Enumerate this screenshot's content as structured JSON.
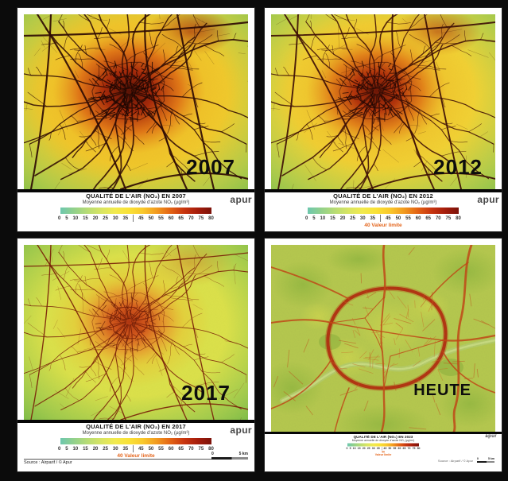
{
  "figure": {
    "background": "#0b0b0b",
    "description": "Vergleich der Luftqualität (NO₂) in Paris: 2007, 2012, 2017 und heute"
  },
  "panels": [
    {
      "year_label": "2007",
      "legend": {
        "title": "QUALITÉ DE L'AIR (NO₂) EN 2007",
        "subtitle": "Moyenne annuelle de dioxyde d'azote NO₂ (µg/m³)",
        "logo_text": "apur"
      },
      "map_colors": {
        "base": "#f1cd2e",
        "mid": "#f0b824",
        "mid2": "#dd6612",
        "core2": "#a32108",
        "core": "#581004",
        "edge": "#9ccb53",
        "edge_dark": "#7fbf4a",
        "blob": "#9c1d07",
        "blob_opacity": 0.8,
        "road": "#2d0903",
        "road_dark": "#170401",
        "road_width": 1.35,
        "mesh_count": 135,
        "core_radius": 0.5
      }
    },
    {
      "year_label": "2012",
      "legend": {
        "title": "QUALITÉ DE L'AIR (NO₂) EN 2012",
        "subtitle": "Moyenne annuelle de dioxyde d'azote NO₂ (µg/m³)",
        "logo_text": "apur",
        "limit_label": "40 Valeur limite"
      },
      "map_colors": {
        "base": "#f2d335",
        "mid": "#efbc28",
        "mid2": "#e07414",
        "core2": "#b02c09",
        "core": "#6b1405",
        "edge": "#9ccb53",
        "edge_dark": "#82c14c",
        "blob": "#a82508",
        "blob_opacity": 0.6,
        "road": "#3c0d05",
        "road_dark": "#1e0502",
        "road_width": 1.2,
        "mesh_count": 110,
        "core_radius": 0.46
      }
    },
    {
      "year_label": "2017",
      "legend": {
        "title": "QUALITÉ DE L'AIR (NO₂) EN 2017",
        "subtitle": "Moyenne annuelle de dioxyde d'azote NO₂ (µg/m³)",
        "logo_text": "apur",
        "limit_label": "40 Valeur limite"
      },
      "source_text": "Source : Airparif / © Apur",
      "scalebar": {
        "zero_label": "0",
        "max_label": "5 km"
      },
      "map_colors": {
        "base": "#dbe14a",
        "mid": "#ecc12f",
        "mid2": "#e8922a",
        "core2": "#d4531a",
        "core": "#b03410",
        "edge": "#8ac24e",
        "edge_dark": "#6fb646",
        "blob": "#c8651c",
        "blob_opacity": 0.4,
        "road": "#7a2008",
        "road_dark": "#5e1806",
        "road_width": 0.85,
        "mesh_count": 70,
        "core_radius": 0.36
      }
    },
    {
      "year_label": "HEUTE",
      "legend": {
        "title": "QUALITÉ DE L'AIR (NO₂) EN 2023",
        "subtitle": "Moyenne annuelle de dioxyde d'azote NO₂ (µg/m³)",
        "logo_text": "apur",
        "limit_value": "40",
        "limit_label": "Valeur limite"
      },
      "source_text": "Source : Airparif / © Apur",
      "scalebar": {
        "zero_label": "0",
        "max_label": "5 km"
      },
      "map_colors": {
        "base": "#b5c94f",
        "patch_green": "#8db63e",
        "patch_yellow": "#d8dc50",
        "river": "#b3cc6b",
        "ring": "#b22a0e",
        "road": "#c24414",
        "minor": "#cc6a22",
        "park": "#86ad3a"
      }
    }
  ],
  "colorbar": {
    "ticks_left": [
      "0",
      "5",
      "10",
      "15",
      "20",
      "25",
      "30",
      "35"
    ],
    "ticks_right": [
      "45",
      "50",
      "55",
      "60",
      "65",
      "70",
      "75",
      "80"
    ],
    "limit_value": "40",
    "unit": "µg/m³",
    "gradient": [
      "#6dc7ae",
      "#93d18b",
      "#b8dc74",
      "#d9e562",
      "#f2ea4e",
      "#f9e136",
      "#f9c82c",
      "#f29b1f",
      "#e36414",
      "#c8350f",
      "#a51d0b",
      "#7c120a"
    ]
  }
}
